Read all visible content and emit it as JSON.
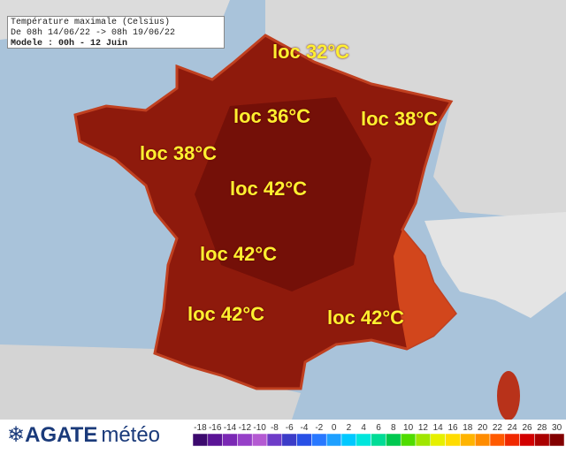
{
  "header": {
    "title": "Température maximale (Celsius)",
    "period": "De 08h 14/06/22 -> 08h 19/06/22",
    "model": "Modele : 00h - 12 Juin"
  },
  "labels": [
    "loc 32°C",
    "loc 36°C",
    "loc 38°C",
    "loc 38°C",
    "loc 42°C",
    "loc 42°C",
    "loc 42°C",
    "loc 42°C"
  ],
  "legend": {
    "ticks": [
      -18,
      -16,
      -14,
      -12,
      -10,
      -8,
      -6,
      -4,
      -2,
      0,
      2,
      4,
      6,
      8,
      10,
      12,
      14,
      16,
      18,
      20,
      22,
      24,
      26,
      28,
      30
    ],
    "colors": [
      "#3c0a6e",
      "#5a1496",
      "#7a28b4",
      "#9640c8",
      "#b45ad2",
      "#6e3cc8",
      "#3c3cc8",
      "#2850e6",
      "#2878ff",
      "#1ea0ff",
      "#00c8ff",
      "#00e6dc",
      "#00dc96",
      "#00c850",
      "#50dc00",
      "#a0e600",
      "#e6f000",
      "#ffdc00",
      "#ffb400",
      "#ff8c00",
      "#ff5a00",
      "#f02800",
      "#d20000",
      "#aa0000",
      "#820000"
    ]
  },
  "logo": {
    "brand": "AGATE",
    "suffix": "météo"
  }
}
